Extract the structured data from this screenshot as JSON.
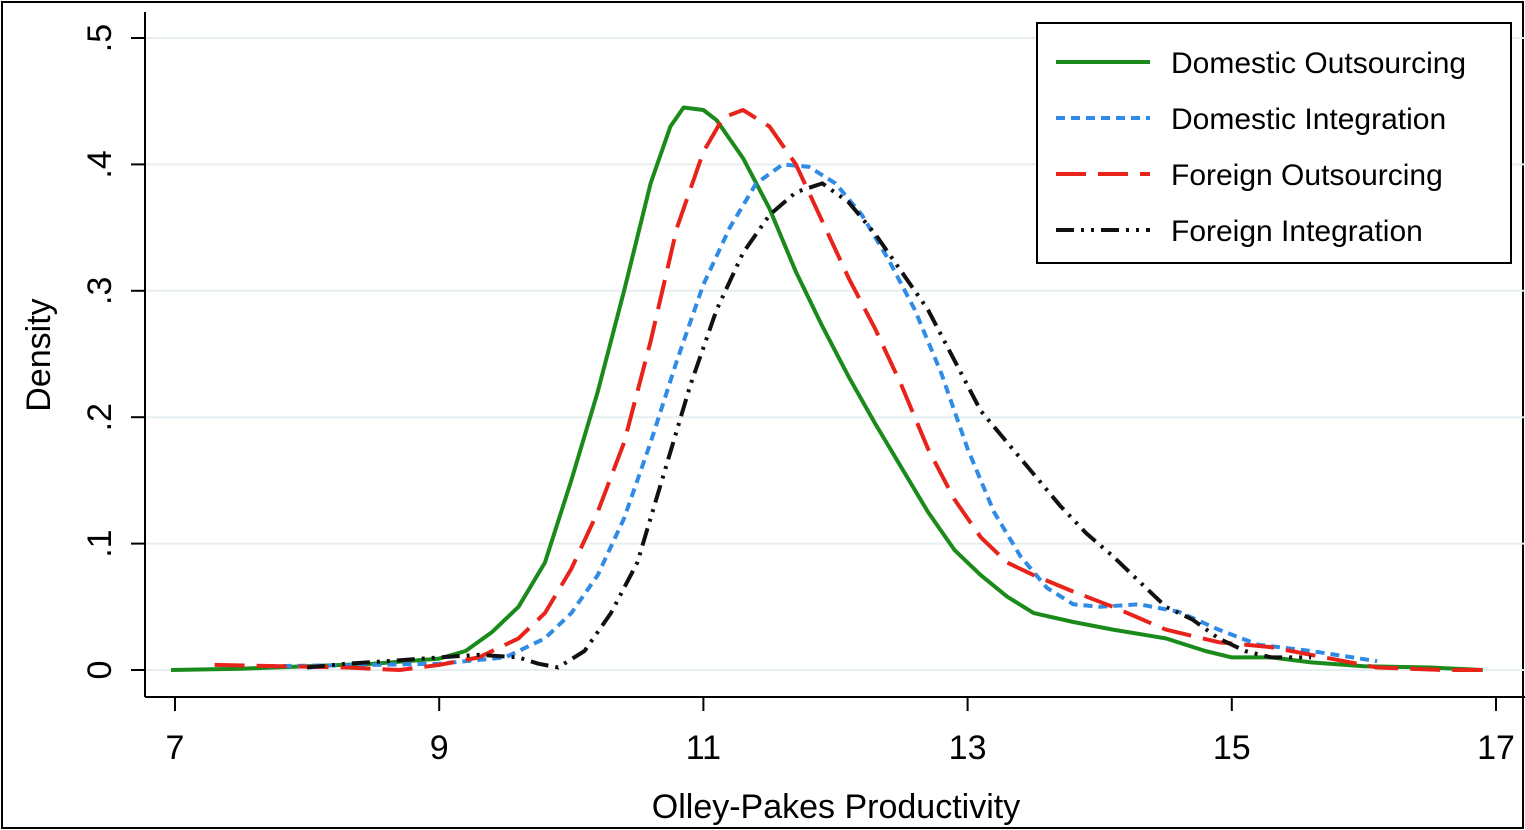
{
  "chart_data": {
    "type": "line",
    "title": "",
    "xlabel": "Olley-Pakes Productivity",
    "ylabel": "Density",
    "xlim": [
      7,
      17
    ],
    "ylim": [
      0,
      0.5
    ],
    "x_ticks": [
      7,
      9,
      11,
      13,
      15,
      17
    ],
    "x_tick_labels": [
      "7",
      "9",
      "11",
      "13",
      "15",
      "17"
    ],
    "y_ticks": [
      0,
      0.1,
      0.2,
      0.3,
      0.4,
      0.5
    ],
    "y_tick_labels": [
      "0",
      ".1",
      ".2",
      ".3",
      ".4",
      ".5"
    ],
    "grid": true,
    "legend_position": "top-right",
    "series": [
      {
        "name": "Domestic Outsourcing",
        "color": "#1a8a1a",
        "dash": "solid",
        "points": [
          [
            6.97,
            0.0
          ],
          [
            7.5,
            0.001
          ],
          [
            8.0,
            0.003
          ],
          [
            8.5,
            0.005
          ],
          [
            9.0,
            0.009
          ],
          [
            9.2,
            0.015
          ],
          [
            9.4,
            0.03
          ],
          [
            9.6,
            0.05
          ],
          [
            9.8,
            0.085
          ],
          [
            10.0,
            0.15
          ],
          [
            10.2,
            0.22
          ],
          [
            10.4,
            0.3
          ],
          [
            10.6,
            0.385
          ],
          [
            10.75,
            0.43
          ],
          [
            10.85,
            0.445
          ],
          [
            11.0,
            0.443
          ],
          [
            11.1,
            0.435
          ],
          [
            11.3,
            0.405
          ],
          [
            11.5,
            0.365
          ],
          [
            11.7,
            0.315
          ],
          [
            11.9,
            0.272
          ],
          [
            12.1,
            0.232
          ],
          [
            12.3,
            0.195
          ],
          [
            12.5,
            0.16
          ],
          [
            12.7,
            0.125
          ],
          [
            12.9,
            0.095
          ],
          [
            13.1,
            0.075
          ],
          [
            13.3,
            0.058
          ],
          [
            13.5,
            0.045
          ],
          [
            13.8,
            0.038
          ],
          [
            14.1,
            0.032
          ],
          [
            14.5,
            0.025
          ],
          [
            14.8,
            0.015
          ],
          [
            15.0,
            0.01
          ],
          [
            15.3,
            0.01
          ],
          [
            15.6,
            0.006
          ],
          [
            16.0,
            0.003
          ],
          [
            16.5,
            0.002
          ],
          [
            16.9,
            0.0
          ]
        ]
      },
      {
        "name": "Domestic Integration",
        "color": "#2f8be6",
        "dash": "short",
        "points": [
          [
            7.7,
            0.003
          ],
          [
            8.5,
            0.004
          ],
          [
            9.0,
            0.005
          ],
          [
            9.5,
            0.01
          ],
          [
            9.8,
            0.025
          ],
          [
            10.0,
            0.045
          ],
          [
            10.2,
            0.075
          ],
          [
            10.4,
            0.12
          ],
          [
            10.6,
            0.18
          ],
          [
            10.8,
            0.245
          ],
          [
            11.0,
            0.305
          ],
          [
            11.2,
            0.35
          ],
          [
            11.4,
            0.385
          ],
          [
            11.6,
            0.4
          ],
          [
            11.8,
            0.398
          ],
          [
            12.0,
            0.385
          ],
          [
            12.2,
            0.36
          ],
          [
            12.4,
            0.325
          ],
          [
            12.6,
            0.285
          ],
          [
            12.8,
            0.235
          ],
          [
            13.0,
            0.175
          ],
          [
            13.2,
            0.125
          ],
          [
            13.4,
            0.09
          ],
          [
            13.6,
            0.065
          ],
          [
            13.8,
            0.052
          ],
          [
            14.0,
            0.05
          ],
          [
            14.3,
            0.052
          ],
          [
            14.6,
            0.046
          ],
          [
            14.9,
            0.032
          ],
          [
            15.2,
            0.02
          ],
          [
            15.6,
            0.015
          ],
          [
            16.1,
            0.007
          ]
        ]
      },
      {
        "name": "Foreign Outsourcing",
        "color": "#e8231a",
        "dash": "long",
        "points": [
          [
            7.3,
            0.004
          ],
          [
            7.8,
            0.003
          ],
          [
            8.3,
            0.002
          ],
          [
            8.7,
            0.0
          ],
          [
            9.0,
            0.004
          ],
          [
            9.3,
            0.01
          ],
          [
            9.6,
            0.025
          ],
          [
            9.8,
            0.045
          ],
          [
            10.0,
            0.08
          ],
          [
            10.2,
            0.125
          ],
          [
            10.4,
            0.18
          ],
          [
            10.6,
            0.26
          ],
          [
            10.8,
            0.35
          ],
          [
            11.0,
            0.41
          ],
          [
            11.15,
            0.437
          ],
          [
            11.3,
            0.443
          ],
          [
            11.5,
            0.43
          ],
          [
            11.7,
            0.4
          ],
          [
            11.9,
            0.355
          ],
          [
            12.1,
            0.31
          ],
          [
            12.3,
            0.27
          ],
          [
            12.5,
            0.225
          ],
          [
            12.7,
            0.175
          ],
          [
            12.9,
            0.135
          ],
          [
            13.1,
            0.105
          ],
          [
            13.3,
            0.085
          ],
          [
            13.5,
            0.075
          ],
          [
            13.8,
            0.062
          ],
          [
            14.1,
            0.05
          ],
          [
            14.5,
            0.032
          ],
          [
            14.9,
            0.022
          ],
          [
            15.3,
            0.018
          ],
          [
            15.7,
            0.01
          ],
          [
            16.1,
            0.002
          ],
          [
            16.6,
            0.0
          ],
          [
            16.9,
            0.0
          ]
        ]
      },
      {
        "name": "Foreign Integration",
        "color": "#111111",
        "dash": "dashdotdot",
        "points": [
          [
            8.0,
            0.002
          ],
          [
            8.3,
            0.005
          ],
          [
            8.6,
            0.007
          ],
          [
            9.0,
            0.01
          ],
          [
            9.3,
            0.012
          ],
          [
            9.6,
            0.01
          ],
          [
            9.75,
            0.005
          ],
          [
            9.9,
            0.002
          ],
          [
            10.1,
            0.015
          ],
          [
            10.3,
            0.045
          ],
          [
            10.5,
            0.085
          ],
          [
            10.7,
            0.155
          ],
          [
            10.9,
            0.225
          ],
          [
            11.1,
            0.285
          ],
          [
            11.3,
            0.33
          ],
          [
            11.5,
            0.36
          ],
          [
            11.7,
            0.378
          ],
          [
            11.9,
            0.385
          ],
          [
            12.1,
            0.37
          ],
          [
            12.3,
            0.345
          ],
          [
            12.5,
            0.315
          ],
          [
            12.7,
            0.285
          ],
          [
            12.9,
            0.245
          ],
          [
            13.1,
            0.205
          ],
          [
            13.3,
            0.18
          ],
          [
            13.5,
            0.155
          ],
          [
            13.7,
            0.13
          ],
          [
            13.9,
            0.108
          ],
          [
            14.1,
            0.09
          ],
          [
            14.3,
            0.07
          ],
          [
            14.5,
            0.05
          ],
          [
            14.7,
            0.04
          ],
          [
            14.9,
            0.025
          ],
          [
            15.1,
            0.015
          ],
          [
            15.3,
            0.01
          ],
          [
            15.6,
            0.01
          ]
        ]
      }
    ]
  }
}
